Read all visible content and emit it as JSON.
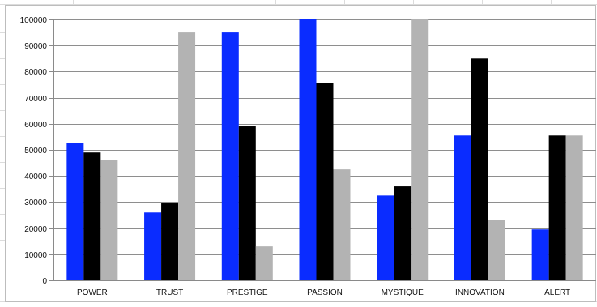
{
  "chart_data": {
    "type": "bar",
    "title": "",
    "xlabel": "",
    "ylabel": "",
    "categories": [
      "POWER",
      "TRUST",
      "PRESTIGE",
      "PASSION",
      "MYSTIQUE",
      "INNOVATION",
      "ALERT"
    ],
    "series": [
      {
        "color": "#0a2cff",
        "values": [
          52500,
          26000,
          95000,
          100000,
          32500,
          55500,
          19500
        ]
      },
      {
        "color": "#000000",
        "values": [
          49000,
          29500,
          59000,
          75500,
          36000,
          85000,
          55500
        ]
      },
      {
        "color": "#b3b3b3",
        "values": [
          46000,
          95000,
          13000,
          42500,
          100000,
          23000,
          55500
        ]
      }
    ],
    "ylim": [
      0,
      100000
    ],
    "yticks": [
      "0",
      "10000",
      "20000",
      "30000",
      "40000",
      "50000",
      "60000",
      "70000",
      "80000",
      "90000",
      "100000"
    ],
    "grid": true,
    "legend": "none"
  }
}
